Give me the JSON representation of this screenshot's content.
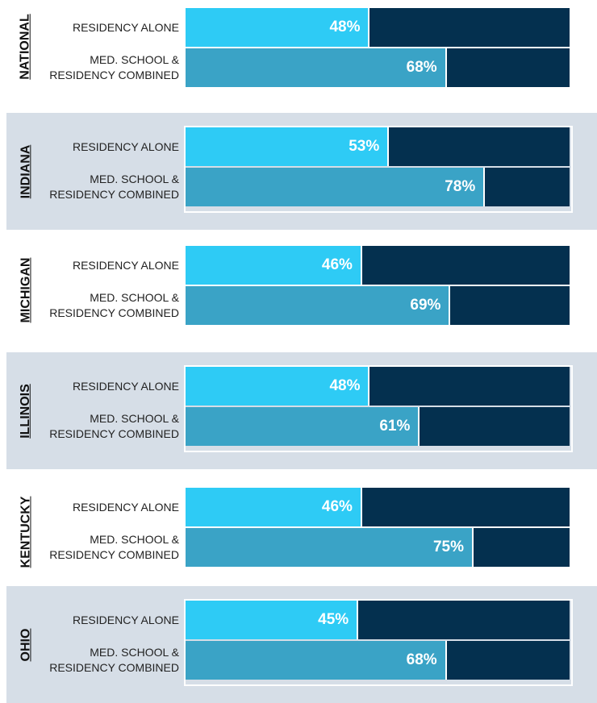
{
  "chart_data": [
    {
      "type": "bar",
      "title": "NATIONAL",
      "categories": [
        "RESIDENCY ALONE",
        "MED. SCHOOL & RESIDENCY COMBINED"
      ],
      "values": [
        48,
        68
      ],
      "value_labels": [
        "48%",
        "68%"
      ],
      "xlim": [
        0,
        100
      ],
      "colors": [
        "#2ecbf5",
        "#3aa3c6"
      ],
      "remainder_color": "#04304f",
      "background": "#ffffff"
    },
    {
      "type": "bar",
      "title": "INDIANA",
      "categories": [
        "RESIDENCY ALONE",
        "MED. SCHOOL & RESIDENCY COMBINED"
      ],
      "values": [
        53,
        78
      ],
      "value_labels": [
        "53%",
        "78%"
      ],
      "xlim": [
        0,
        100
      ],
      "colors": [
        "#2ecbf5",
        "#3aa3c6"
      ],
      "remainder_color": "#04304f",
      "background": "#d6dee7"
    },
    {
      "type": "bar",
      "title": "MICHIGAN",
      "categories": [
        "RESIDENCY ALONE",
        "MED. SCHOOL & RESIDENCY COMBINED"
      ],
      "values": [
        46,
        69
      ],
      "value_labels": [
        "46%",
        "69%"
      ],
      "xlim": [
        0,
        100
      ],
      "colors": [
        "#2ecbf5",
        "#3aa3c6"
      ],
      "remainder_color": "#04304f",
      "background": "#ffffff"
    },
    {
      "type": "bar",
      "title": "ILLINOIS",
      "categories": [
        "RESIDENCY ALONE",
        "MED. SCHOOL & RESIDENCY COMBINED"
      ],
      "values": [
        48,
        61
      ],
      "value_labels": [
        "48%",
        "61%"
      ],
      "xlim": [
        0,
        100
      ],
      "colors": [
        "#2ecbf5",
        "#3aa3c6"
      ],
      "remainder_color": "#04304f",
      "background": "#d6dee7"
    },
    {
      "type": "bar",
      "title": "KENTUCKY",
      "categories": [
        "RESIDENCY ALONE",
        "MED. SCHOOL & RESIDENCY COMBINED"
      ],
      "values": [
        46,
        75
      ],
      "value_labels": [
        "46%",
        "75%"
      ],
      "xlim": [
        0,
        100
      ],
      "colors": [
        "#2ecbf5",
        "#3aa3c6"
      ],
      "remainder_color": "#04304f",
      "background": "#ffffff"
    },
    {
      "type": "bar",
      "title": "OHIO",
      "categories": [
        "RESIDENCY ALONE",
        "MED. SCHOOL & RESIDENCY COMBINED"
      ],
      "values": [
        45,
        68
      ],
      "value_labels": [
        "45%",
        "68%"
      ],
      "xlim": [
        0,
        100
      ],
      "colors": [
        "#2ecbf5",
        "#3aa3c6"
      ],
      "remainder_color": "#04304f",
      "background": "#d6dee7"
    }
  ]
}
